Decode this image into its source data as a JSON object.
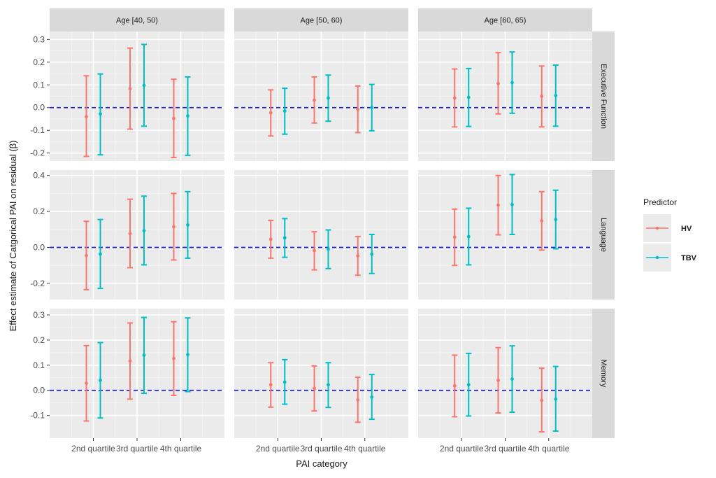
{
  "chart_data": {
    "type": "errorbar",
    "xlabel": "PAI category",
    "ylabel": "Effect estimate of Catgorical PAI on residual (β)",
    "categories": [
      "2nd quartile",
      "3rd quartile",
      "4th quartile"
    ],
    "columns": [
      "Age [40, 50)",
      "Age [50, 60)",
      "Age [60, 65)"
    ],
    "rows": [
      {
        "label": "Executive Function",
        "ylim": [
          -0.235,
          0.335
        ],
        "ticks": [
          -0.2,
          -0.1,
          0.0,
          0.1,
          0.2,
          0.3
        ],
        "tick_labels": [
          "-0.2",
          "-0.1",
          "0.0",
          "0.1",
          "0.2",
          "0.3"
        ]
      },
      {
        "label": "Language",
        "ylim": [
          -0.29,
          0.43
        ],
        "ticks": [
          -0.2,
          0.0,
          0.2,
          0.4
        ],
        "tick_labels": [
          "-0.2",
          "0.0",
          "0.2",
          "0.4"
        ]
      },
      {
        "label": "Memory",
        "ylim": [
          -0.19,
          0.325
        ],
        "ticks": [
          -0.1,
          0.0,
          0.1,
          0.2,
          0.3
        ],
        "tick_labels": [
          "-0.1",
          "0.0",
          "0.1",
          "0.2",
          "0.3"
        ]
      }
    ],
    "reference_line": {
      "y": 0.0,
      "color": "#1f1fd6",
      "style": "dashed"
    },
    "legend": {
      "title": "Predictor",
      "position": "right"
    },
    "series": [
      {
        "name": "HV",
        "color": "#F8766D",
        "panels": [
          [
            [
              {
                "est": -0.04,
                "lo": -0.215,
                "hi": 0.14
              },
              {
                "est": 0.083,
                "lo": -0.095,
                "hi": 0.262
              },
              {
                "est": -0.048,
                "lo": -0.22,
                "hi": 0.125
              }
            ],
            [
              {
                "est": -0.023,
                "lo": -0.125,
                "hi": 0.078
              },
              {
                "est": 0.033,
                "lo": -0.068,
                "hi": 0.135
              },
              {
                "est": -0.007,
                "lo": -0.11,
                "hi": 0.095
              }
            ],
            [
              {
                "est": 0.042,
                "lo": -0.085,
                "hi": 0.17
              },
              {
                "est": 0.106,
                "lo": -0.028,
                "hi": 0.242
              },
              {
                "est": 0.05,
                "lo": -0.085,
                "hi": 0.183
              }
            ]
          ],
          [
            [
              {
                "est": -0.045,
                "lo": -0.235,
                "hi": 0.145
              },
              {
                "est": 0.077,
                "lo": -0.113,
                "hi": 0.268
              },
              {
                "est": 0.115,
                "lo": -0.07,
                "hi": 0.3
              }
            ],
            [
              {
                "est": 0.045,
                "lo": -0.06,
                "hi": 0.15
              },
              {
                "est": -0.018,
                "lo": -0.125,
                "hi": 0.087
              },
              {
                "est": -0.047,
                "lo": -0.155,
                "hi": 0.06
              }
            ],
            [
              {
                "est": 0.057,
                "lo": -0.1,
                "hi": 0.213
              },
              {
                "est": 0.235,
                "lo": 0.07,
                "hi": 0.4
              },
              {
                "est": 0.148,
                "lo": -0.015,
                "hi": 0.31
              }
            ]
          ],
          [
            [
              {
                "est": 0.028,
                "lo": -0.122,
                "hi": 0.178
              },
              {
                "est": 0.117,
                "lo": -0.035,
                "hi": 0.268
              },
              {
                "est": 0.127,
                "lo": -0.02,
                "hi": 0.273
              }
            ],
            [
              {
                "est": 0.022,
                "lo": -0.067,
                "hi": 0.11
              },
              {
                "est": 0.008,
                "lo": -0.082,
                "hi": 0.097
              },
              {
                "est": -0.038,
                "lo": -0.127,
                "hi": 0.052
              }
            ],
            [
              {
                "est": 0.018,
                "lo": -0.105,
                "hi": 0.14
              },
              {
                "est": 0.04,
                "lo": -0.09,
                "hi": 0.17
              },
              {
                "est": -0.04,
                "lo": -0.165,
                "hi": 0.088
              }
            ]
          ]
        ]
      },
      {
        "name": "TBV",
        "color": "#00BFC4",
        "panels": [
          [
            [
              {
                "est": -0.028,
                "lo": -0.208,
                "hi": 0.148
              },
              {
                "est": 0.098,
                "lo": -0.082,
                "hi": 0.278
              },
              {
                "est": -0.037,
                "lo": -0.21,
                "hi": 0.135
              }
            ],
            [
              {
                "est": -0.015,
                "lo": -0.117,
                "hi": 0.085
              },
              {
                "est": 0.042,
                "lo": -0.06,
                "hi": 0.143
              },
              {
                "est": 0.0,
                "lo": -0.102,
                "hi": 0.102
              }
            ],
            [
              {
                "est": 0.045,
                "lo": -0.083,
                "hi": 0.172
              },
              {
                "est": 0.11,
                "lo": -0.025,
                "hi": 0.245
              },
              {
                "est": 0.053,
                "lo": -0.082,
                "hi": 0.187
              }
            ]
          ],
          [
            [
              {
                "est": -0.037,
                "lo": -0.228,
                "hi": 0.155
              },
              {
                "est": 0.093,
                "lo": -0.097,
                "hi": 0.285
              },
              {
                "est": 0.125,
                "lo": -0.06,
                "hi": 0.31
              }
            ],
            [
              {
                "est": 0.053,
                "lo": -0.055,
                "hi": 0.16
              },
              {
                "est": -0.01,
                "lo": -0.118,
                "hi": 0.097
              },
              {
                "est": -0.037,
                "lo": -0.145,
                "hi": 0.072
              }
            ],
            [
              {
                "est": 0.06,
                "lo": -0.097,
                "hi": 0.218
              },
              {
                "est": 0.238,
                "lo": 0.072,
                "hi": 0.405
              },
              {
                "est": 0.155,
                "lo": -0.008,
                "hi": 0.318
              }
            ]
          ],
          [
            [
              {
                "est": 0.04,
                "lo": -0.11,
                "hi": 0.19
              },
              {
                "est": 0.14,
                "lo": -0.012,
                "hi": 0.29
              },
              {
                "est": 0.142,
                "lo": -0.005,
                "hi": 0.288
              }
            ],
            [
              {
                "est": 0.033,
                "lo": -0.055,
                "hi": 0.122
              },
              {
                "est": 0.022,
                "lo": -0.068,
                "hi": 0.11
              },
              {
                "est": -0.027,
                "lo": -0.115,
                "hi": 0.063
              }
            ],
            [
              {
                "est": 0.022,
                "lo": -0.102,
                "hi": 0.147
              },
              {
                "est": 0.045,
                "lo": -0.087,
                "hi": 0.177
              },
              {
                "est": -0.035,
                "lo": -0.162,
                "hi": 0.095
              }
            ]
          ]
        ]
      }
    ]
  }
}
